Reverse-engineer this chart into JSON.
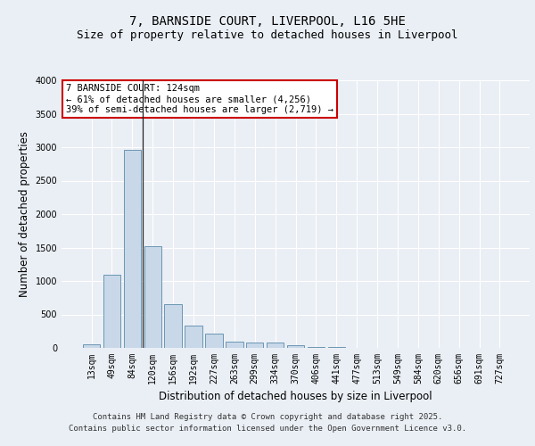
{
  "title_line1": "7, BARNSIDE COURT, LIVERPOOL, L16 5HE",
  "title_line2": "Size of property relative to detached houses in Liverpool",
  "xlabel": "Distribution of detached houses by size in Liverpool",
  "ylabel": "Number of detached properties",
  "bar_labels": [
    "13sqm",
    "49sqm",
    "84sqm",
    "120sqm",
    "156sqm",
    "192sqm",
    "227sqm",
    "263sqm",
    "299sqm",
    "334sqm",
    "370sqm",
    "406sqm",
    "441sqm",
    "477sqm",
    "513sqm",
    "549sqm",
    "584sqm",
    "620sqm",
    "656sqm",
    "691sqm",
    "727sqm"
  ],
  "bar_values": [
    50,
    1100,
    2960,
    1520,
    660,
    340,
    215,
    90,
    85,
    80,
    35,
    20,
    10,
    5,
    0,
    0,
    0,
    0,
    0,
    0,
    0
  ],
  "bar_color": "#c8d8e8",
  "bar_edge_color": "#5a8aaa",
  "annotation_line1": "7 BARNSIDE COURT: 124sqm",
  "annotation_line2": "← 61% of detached houses are smaller (4,256)",
  "annotation_line3": "39% of semi-detached houses are larger (2,719) →",
  "annotation_box_color": "#ffffff",
  "annotation_box_edge": "#cc0000",
  "vline_x_index": 2,
  "ylim": [
    0,
    4000
  ],
  "yticks": [
    0,
    500,
    1000,
    1500,
    2000,
    2500,
    3000,
    3500,
    4000
  ],
  "background_color": "#eaeff5",
  "plot_background": "#eaeff5",
  "footer_line1": "Contains HM Land Registry data © Crown copyright and database right 2025.",
  "footer_line2": "Contains public sector information licensed under the Open Government Licence v3.0.",
  "title_fontsize": 10,
  "subtitle_fontsize": 9,
  "axis_label_fontsize": 8.5,
  "tick_fontsize": 7,
  "footer_fontsize": 6.5
}
